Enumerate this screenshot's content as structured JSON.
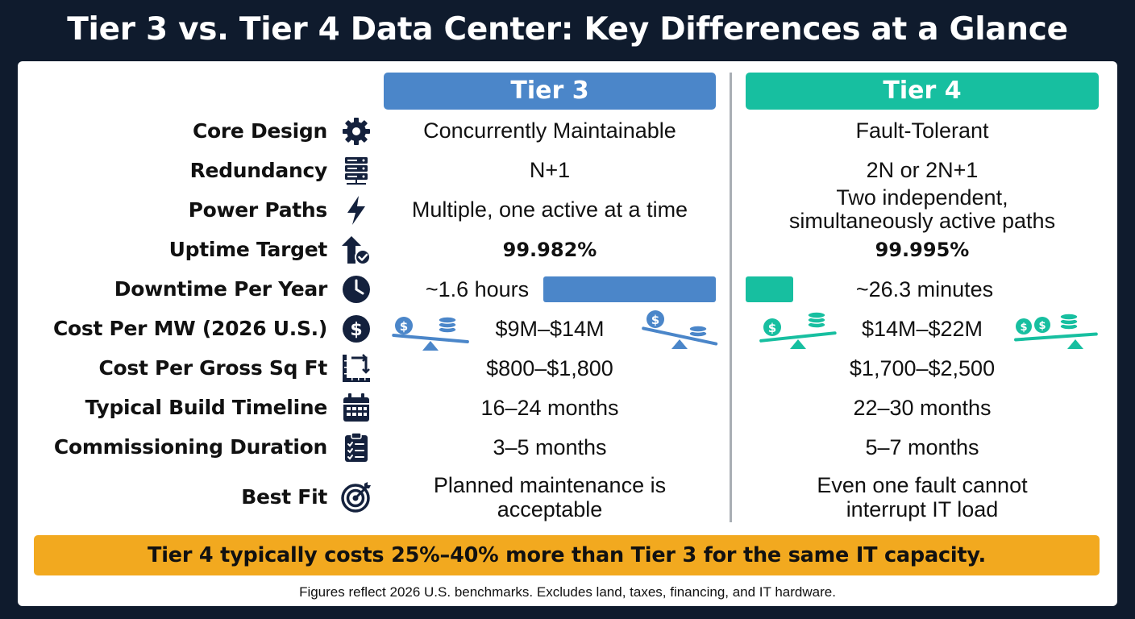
{
  "title": "Tier 3 vs. Tier 4 Data Center: Key Differences at a Glance",
  "columns": {
    "tier3": "Tier 3",
    "tier4": "Tier 4"
  },
  "colors": {
    "background": "#0f1b2d",
    "tier3_blue": "#4b86c9",
    "tier4_teal": "#17bfa0",
    "banner_orange": "#f2a91f",
    "icon_navy": "#14213d"
  },
  "rows": {
    "core_design": {
      "label": "Core Design",
      "icon": "gear-icon",
      "tier3": "Concurrently Maintainable",
      "tier4": "Fault-Tolerant"
    },
    "redundancy": {
      "label": "Redundancy",
      "icon": "server-rack-icon",
      "tier3": "N+1",
      "tier4": "2N or 2N+1"
    },
    "power_paths": {
      "label": "Power Paths",
      "icon": "lightning-bolt-icon",
      "tier3": "Multiple, one active at a time",
      "tier4_line1": "Two independent,",
      "tier4_line2": "simultaneously active paths"
    },
    "uptime_target": {
      "label": "Uptime Target",
      "icon": "uptime-arrow-check-icon",
      "tier3": "99.982%",
      "tier4": "99.995%"
    },
    "downtime": {
      "label": "Downtime Per Year",
      "icon": "clock-icon",
      "tier3": "~1.6 hours",
      "tier4": "~26.3 minutes",
      "tier3_minutes": 96,
      "tier4_minutes": 26.3
    },
    "cost_per_mw": {
      "label": "Cost Per MW (2026 U.S.)",
      "icon": "dollar-coin-icon",
      "tier3": "$9M–$14M",
      "tier4": "$14M–$22M"
    },
    "cost_per_sqft": {
      "label": "Cost Per Gross Sq Ft",
      "icon": "floor-area-icon",
      "tier3": "$800–$1,800",
      "tier4": "$1,700–$2,500"
    },
    "build_timeline": {
      "label": "Typical Build Timeline",
      "icon": "calendar-icon",
      "tier3": "16–24 months",
      "tier4": "22–30 months"
    },
    "commissioning": {
      "label": "Commissioning Duration",
      "icon": "checklist-clipboard-icon",
      "tier3": "3–5 months",
      "tier4": "5–7 months"
    },
    "best_fit": {
      "label": "Best Fit",
      "icon": "target-icon",
      "tier3_line1": "Planned maintenance is",
      "tier3_line2": "acceptable",
      "tier4_line1": "Even one fault cannot",
      "tier4_line2": "interrupt IT load"
    }
  },
  "banner": "Tier 4 typically costs 25%–40% more than Tier 3 for the same IT capacity.",
  "footnote": "Figures reflect 2026 U.S. benchmarks. Excludes land, taxes, financing, and IT hardware."
}
